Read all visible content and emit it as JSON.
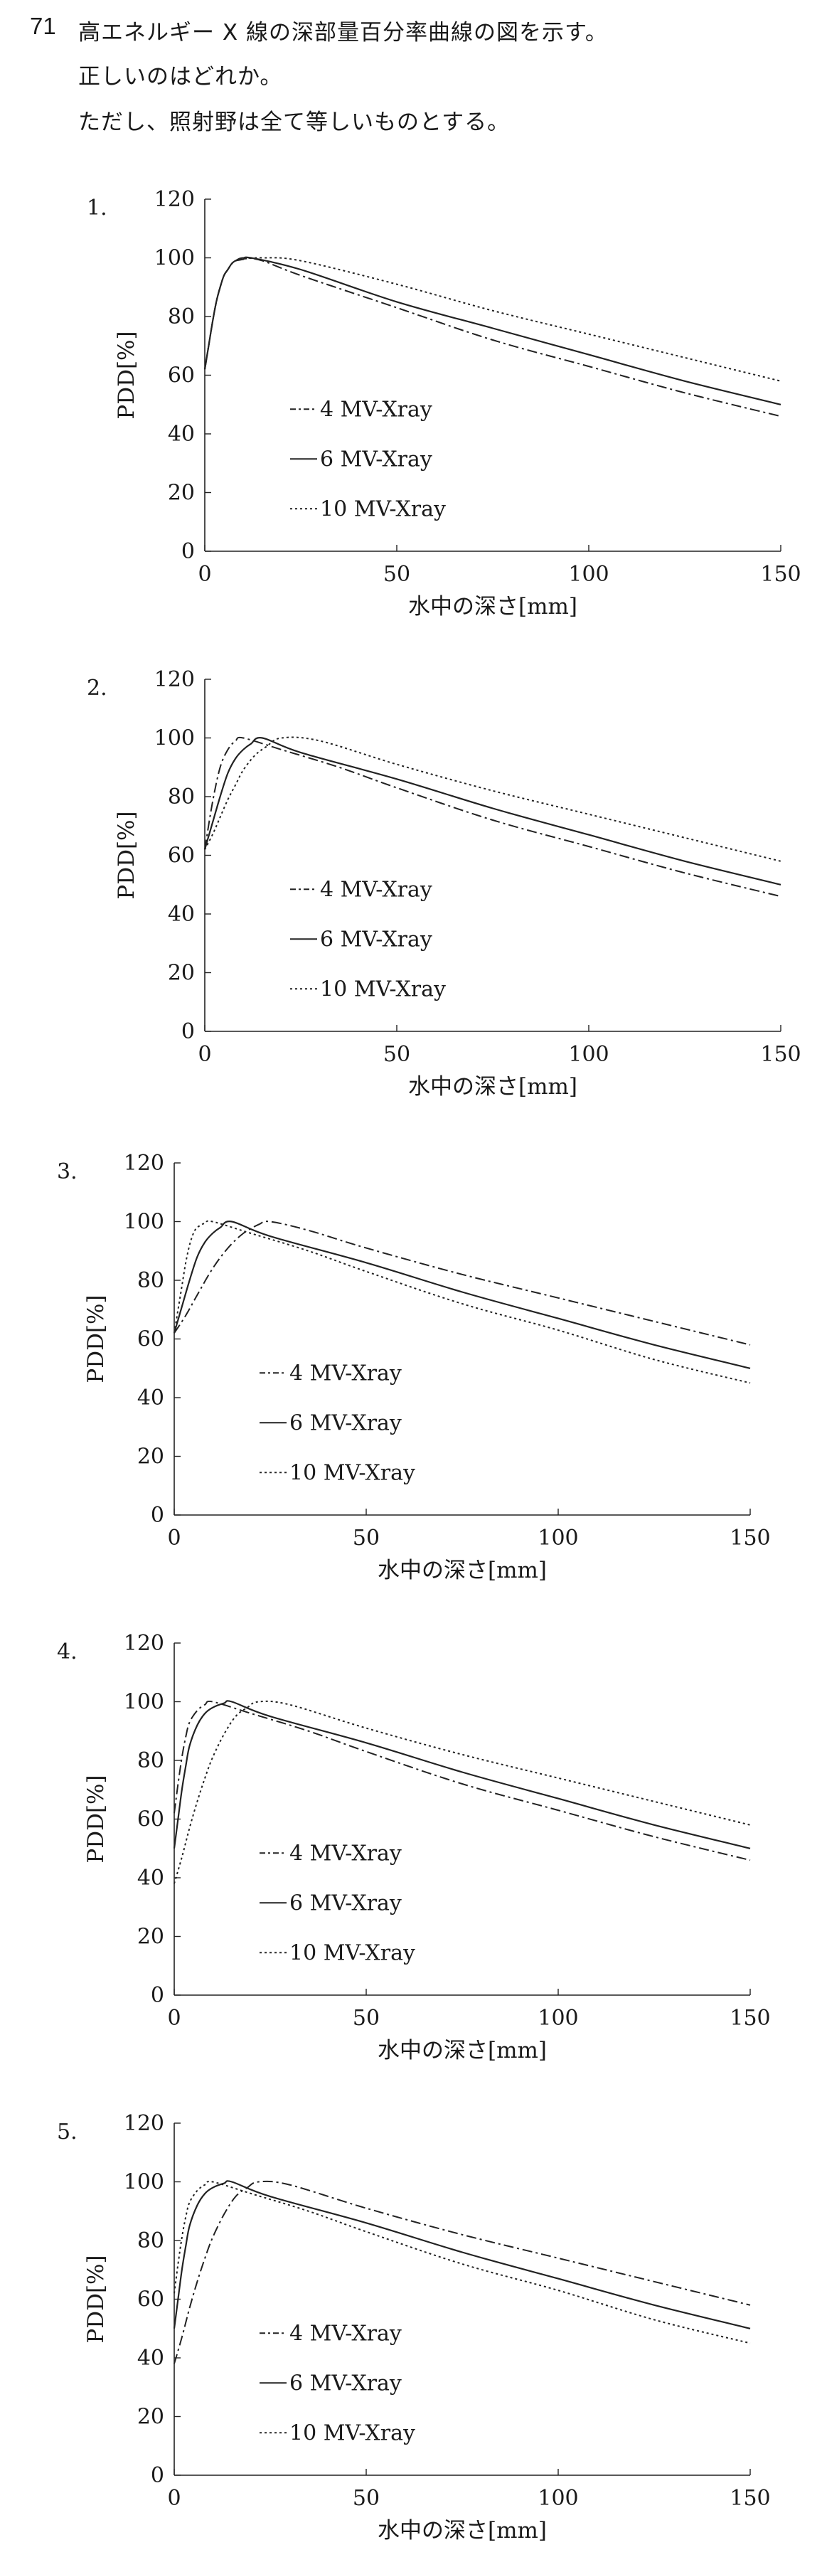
{
  "question": {
    "number": "71",
    "lines": [
      "高エネルギー X 線の深部量百分率曲線の図を示す。",
      "正しいのはどれか。",
      "ただし、照射野は全て等しいものとする。"
    ]
  },
  "chart_data": [
    {
      "type": "line",
      "label": "1.",
      "xlabel": "水中の深さ[mm]",
      "ylabel": "PDD[%]",
      "xlim": [
        0,
        150
      ],
      "ylim": [
        0,
        120
      ],
      "xticks": [
        0,
        50,
        100,
        150
      ],
      "yticks": [
        0,
        20,
        40,
        60,
        80,
        100,
        120
      ],
      "legend_placement": "center-left",
      "series": [
        {
          "name": "4 MV-Xray",
          "style": "dash-dot",
          "dmax": 10,
          "surface": 62,
          "points": [
            [
              0,
              62
            ],
            [
              1,
              70
            ],
            [
              2,
              78
            ],
            [
              3,
              85
            ],
            [
              4,
              90
            ],
            [
              5,
              94
            ],
            [
              6,
              96
            ],
            [
              7,
              98
            ],
            [
              8,
              99
            ],
            [
              10,
              100
            ],
            [
              15,
              99
            ],
            [
              25,
              94
            ],
            [
              50,
              83
            ],
            [
              75,
              72
            ],
            [
              100,
              63
            ],
            [
              125,
              54
            ],
            [
              150,
              46
            ]
          ]
        },
        {
          "name": "6 MV-Xray",
          "style": "solid",
          "dmax": 12,
          "surface": 62,
          "points": [
            [
              0,
              62
            ],
            [
              1,
              70
            ],
            [
              2,
              78
            ],
            [
              3,
              85
            ],
            [
              4,
              90
            ],
            [
              5,
              94
            ],
            [
              6,
              96
            ],
            [
              7,
              98
            ],
            [
              8,
              99
            ],
            [
              10,
              99.5
            ],
            [
              12,
              100
            ],
            [
              25,
              96
            ],
            [
              50,
              85
            ],
            [
              75,
              76
            ],
            [
              100,
              67
            ],
            [
              125,
              58
            ],
            [
              150,
              50
            ]
          ]
        },
        {
          "name": "10 MV-Xray",
          "style": "dotted",
          "dmax": 15,
          "surface": 62,
          "points": [
            [
              0,
              62
            ],
            [
              1,
              70
            ],
            [
              2,
              78
            ],
            [
              3,
              85
            ],
            [
              4,
              90
            ],
            [
              5,
              94
            ],
            [
              6,
              96
            ],
            [
              7,
              98
            ],
            [
              8,
              99
            ],
            [
              10,
              99.6
            ],
            [
              15,
              100
            ],
            [
              25,
              99
            ],
            [
              50,
              91
            ],
            [
              75,
              82
            ],
            [
              100,
              74
            ],
            [
              125,
              66
            ],
            [
              150,
              58
            ]
          ]
        }
      ]
    },
    {
      "type": "line",
      "label": "2.",
      "xlabel": "水中の深さ[mm]",
      "ylabel": "PDD[%]",
      "xlim": [
        0,
        150
      ],
      "ylim": [
        0,
        120
      ],
      "xticks": [
        0,
        50,
        100,
        150
      ],
      "yticks": [
        0,
        20,
        40,
        60,
        80,
        100,
        120
      ],
      "legend_placement": "center-left",
      "series": [
        {
          "name": "4 MV-Xray",
          "style": "dash-dot",
          "dmax": 10,
          "surface": 62,
          "points": [
            [
              0,
              62
            ],
            [
              2,
              78
            ],
            [
              4,
              90
            ],
            [
              6,
              96
            ],
            [
              8,
              99
            ],
            [
              10,
              100
            ],
            [
              20,
              96
            ],
            [
              35,
              90
            ],
            [
              50,
              83
            ],
            [
              75,
              72
            ],
            [
              100,
              63
            ],
            [
              125,
              54
            ],
            [
              150,
              46
            ]
          ]
        },
        {
          "name": "6 MV-Xray",
          "style": "solid",
          "dmax": 15,
          "surface": 62,
          "points": [
            [
              0,
              62
            ],
            [
              2,
              71
            ],
            [
              4,
              80
            ],
            [
              6,
              88
            ],
            [
              8,
              93
            ],
            [
              10,
              96
            ],
            [
              12,
              98
            ],
            [
              15,
              100
            ],
            [
              25,
              95
            ],
            [
              50,
              86
            ],
            [
              75,
              76
            ],
            [
              100,
              67
            ],
            [
              125,
              58
            ],
            [
              150,
              50
            ]
          ]
        },
        {
          "name": "10 MV-Xray",
          "style": "dotted",
          "dmax": 20,
          "surface": 62,
          "points": [
            [
              0,
              62
            ],
            [
              2,
              67
            ],
            [
              4,
              73
            ],
            [
              6,
              79
            ],
            [
              8,
              84
            ],
            [
              10,
              89
            ],
            [
              13,
              94
            ],
            [
              16,
              97
            ],
            [
              20,
              100
            ],
            [
              30,
              99
            ],
            [
              50,
              91
            ],
            [
              75,
              82
            ],
            [
              100,
              74
            ],
            [
              125,
              66
            ],
            [
              150,
              58
            ]
          ]
        }
      ]
    },
    {
      "type": "line",
      "label": "3.",
      "xlabel": "水中の深さ[mm]",
      "ylabel": "PDD[%]",
      "xlim": [
        0,
        150
      ],
      "ylim": [
        0,
        120
      ],
      "xticks": [
        0,
        50,
        100,
        150
      ],
      "yticks": [
        0,
        20,
        40,
        60,
        80,
        100,
        120
      ],
      "legend_placement": "center-left",
      "series": [
        {
          "name": "4 MV-Xray",
          "style": "dash-dot",
          "dmax": 25,
          "surface": 62,
          "points": [
            [
              0,
              62
            ],
            [
              3,
              68
            ],
            [
              6,
              75
            ],
            [
              10,
              84
            ],
            [
              14,
              91
            ],
            [
              18,
              96
            ],
            [
              22,
              99
            ],
            [
              25,
              100
            ],
            [
              35,
              97
            ],
            [
              50,
              91
            ],
            [
              75,
              82
            ],
            [
              100,
              74
            ],
            [
              125,
              66
            ],
            [
              150,
              58
            ]
          ]
        },
        {
          "name": "6 MV-Xray",
          "style": "solid",
          "dmax": 15,
          "surface": 62,
          "points": [
            [
              0,
              62
            ],
            [
              2,
              71
            ],
            [
              4,
              80
            ],
            [
              6,
              88
            ],
            [
              8,
              93
            ],
            [
              10,
              96
            ],
            [
              12,
              98
            ],
            [
              15,
              100
            ],
            [
              25,
              95
            ],
            [
              50,
              86
            ],
            [
              75,
              76
            ],
            [
              100,
              67
            ],
            [
              125,
              58
            ],
            [
              150,
              50
            ]
          ]
        },
        {
          "name": "10 MV-Xray",
          "style": "dotted",
          "dmax": 10,
          "surface": 62,
          "points": [
            [
              0,
              62
            ],
            [
              1,
              70
            ],
            [
              2,
              78
            ],
            [
              3,
              86
            ],
            [
              4,
              92
            ],
            [
              5,
              96
            ],
            [
              6,
              98
            ],
            [
              8,
              99.5
            ],
            [
              10,
              100
            ],
            [
              20,
              96
            ],
            [
              35,
              90
            ],
            [
              50,
              83
            ],
            [
              75,
              72
            ],
            [
              100,
              63
            ],
            [
              125,
              53
            ],
            [
              150,
              45
            ]
          ]
        }
      ]
    },
    {
      "type": "line",
      "label": "4.",
      "xlabel": "水中の深さ[mm]",
      "ylabel": "PDD[%]",
      "xlim": [
        0,
        150
      ],
      "ylim": [
        0,
        120
      ],
      "xticks": [
        0,
        50,
        100,
        150
      ],
      "yticks": [
        0,
        20,
        40,
        60,
        80,
        100,
        120
      ],
      "legend_placement": "center-left",
      "series": [
        {
          "name": "4 MV-Xray",
          "style": "dash-dot",
          "dmax": 10,
          "surface": 62,
          "points": [
            [
              0,
              62
            ],
            [
              1,
              72
            ],
            [
              2,
              81
            ],
            [
              3,
              88
            ],
            [
              4,
              93
            ],
            [
              6,
              97
            ],
            [
              8,
              99
            ],
            [
              10,
              100
            ],
            [
              20,
              96
            ],
            [
              35,
              90
            ],
            [
              50,
              83
            ],
            [
              75,
              72
            ],
            [
              100,
              63
            ],
            [
              125,
              54
            ],
            [
              150,
              46
            ]
          ]
        },
        {
          "name": "6 MV-Xray",
          "style": "solid",
          "dmax": 15,
          "surface": 50,
          "points": [
            [
              0,
              50
            ],
            [
              1,
              60
            ],
            [
              2,
              70
            ],
            [
              3,
              78
            ],
            [
              4,
              85
            ],
            [
              6,
              92
            ],
            [
              8,
              96
            ],
            [
              10,
              98
            ],
            [
              13,
              99.5
            ],
            [
              15,
              100
            ],
            [
              25,
              95
            ],
            [
              50,
              86
            ],
            [
              75,
              76
            ],
            [
              100,
              67
            ],
            [
              125,
              58
            ],
            [
              150,
              50
            ]
          ]
        },
        {
          "name": "10 MV-Xray",
          "style": "dotted",
          "dmax": 22,
          "surface": 38,
          "points": [
            [
              0,
              38
            ],
            [
              2,
              47
            ],
            [
              4,
              57
            ],
            [
              6,
              66
            ],
            [
              8,
              74
            ],
            [
              10,
              81
            ],
            [
              13,
              89
            ],
            [
              16,
              95
            ],
            [
              19,
              98
            ],
            [
              22,
              100
            ],
            [
              30,
              99
            ],
            [
              50,
              91
            ],
            [
              75,
              82
            ],
            [
              100,
              74
            ],
            [
              125,
              66
            ],
            [
              150,
              58
            ]
          ]
        }
      ]
    },
    {
      "type": "line",
      "label": "5.",
      "xlabel": "水中の深さ[mm]",
      "ylabel": "PDD[%]",
      "xlim": [
        0,
        150
      ],
      "ylim": [
        0,
        120
      ],
      "xticks": [
        0,
        50,
        100,
        150
      ],
      "yticks": [
        0,
        20,
        40,
        60,
        80,
        100,
        120
      ],
      "legend_placement": "center-left",
      "series": [
        {
          "name": "4 MV-Xray",
          "style": "dash-dot",
          "dmax": 22,
          "surface": 38,
          "points": [
            [
              0,
              38
            ],
            [
              2,
              47
            ],
            [
              4,
              57
            ],
            [
              6,
              66
            ],
            [
              8,
              74
            ],
            [
              10,
              81
            ],
            [
              13,
              89
            ],
            [
              16,
              95
            ],
            [
              19,
              98
            ],
            [
              22,
              100
            ],
            [
              30,
              99
            ],
            [
              50,
              91
            ],
            [
              75,
              82
            ],
            [
              100,
              74
            ],
            [
              125,
              66
            ],
            [
              150,
              58
            ]
          ]
        },
        {
          "name": "6 MV-Xray",
          "style": "solid",
          "dmax": 15,
          "surface": 50,
          "points": [
            [
              0,
              50
            ],
            [
              1,
              60
            ],
            [
              2,
              70
            ],
            [
              3,
              78
            ],
            [
              4,
              85
            ],
            [
              6,
              92
            ],
            [
              8,
              96
            ],
            [
              10,
              98
            ],
            [
              13,
              99.5
            ],
            [
              15,
              100
            ],
            [
              25,
              95
            ],
            [
              50,
              86
            ],
            [
              75,
              76
            ],
            [
              100,
              67
            ],
            [
              125,
              58
            ],
            [
              150,
              50
            ]
          ]
        },
        {
          "name": "10 MV-Xray",
          "style": "dotted",
          "dmax": 10,
          "surface": 62,
          "points": [
            [
              0,
              62
            ],
            [
              1,
              72
            ],
            [
              2,
              81
            ],
            [
              3,
              88
            ],
            [
              4,
              93
            ],
            [
              6,
              97
            ],
            [
              8,
              99
            ],
            [
              10,
              100
            ],
            [
              20,
              96
            ],
            [
              35,
              90
            ],
            [
              50,
              83
            ],
            [
              75,
              72
            ],
            [
              100,
              63
            ],
            [
              125,
              53
            ],
            [
              150,
              45
            ]
          ]
        }
      ]
    }
  ]
}
